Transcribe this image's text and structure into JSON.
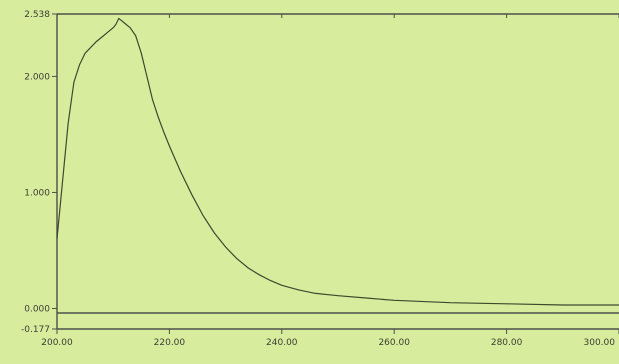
{
  "chart_data": {
    "type": "line",
    "title": "",
    "xlabel": "",
    "ylabel": "",
    "xlim": [
      200,
      300
    ],
    "ylim": [
      -0.177,
      2.538
    ],
    "x_ticks": [
      "200.00",
      "220.00",
      "240.00",
      "260.00",
      "280.00",
      "300.00"
    ],
    "y_ticks": [
      "-0.177",
      "0.000",
      "1.000",
      "2.000",
      "2.538"
    ],
    "grid": false,
    "colors": {
      "background": "#d8ec9e",
      "line": "#3c4a2e",
      "axis": "#4c5048"
    },
    "series": [
      {
        "x": [
          200,
          201,
          202,
          203,
          204,
          205,
          206,
          207,
          208,
          209,
          210,
          210.5,
          211,
          211.5,
          212,
          213,
          214,
          215,
          216,
          217,
          218,
          219,
          220,
          222,
          224,
          226,
          228,
          230,
          232,
          234,
          236,
          238,
          240,
          243,
          246,
          250,
          255,
          260,
          270,
          280,
          290,
          300
        ],
        "y": [
          0.6,
          1.1,
          1.6,
          1.95,
          2.1,
          2.2,
          2.25,
          2.3,
          2.34,
          2.38,
          2.42,
          2.45,
          2.5,
          2.48,
          2.46,
          2.42,
          2.35,
          2.2,
          2.0,
          1.8,
          1.65,
          1.52,
          1.4,
          1.18,
          0.98,
          0.8,
          0.65,
          0.53,
          0.43,
          0.35,
          0.29,
          0.24,
          0.2,
          0.16,
          0.13,
          0.11,
          0.09,
          0.07,
          0.05,
          0.04,
          0.03,
          0.03
        ]
      }
    ]
  }
}
